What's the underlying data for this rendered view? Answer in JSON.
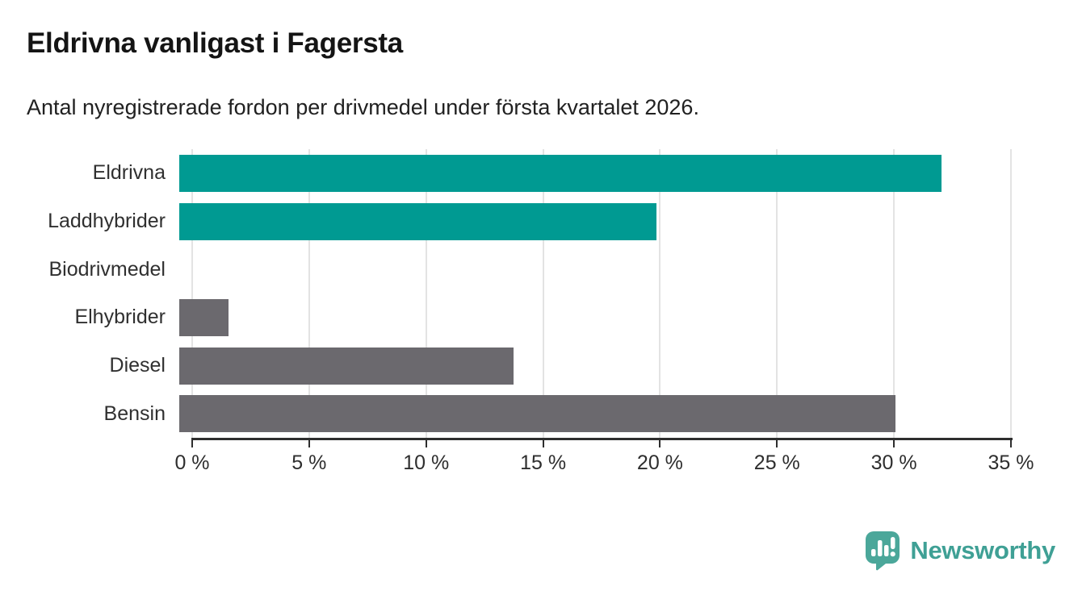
{
  "header": {
    "title": "Eldrivna vanligast i Fagersta",
    "subtitle": "Antal nyregistrerade fordon per drivmedel under första kvartalet 2026."
  },
  "chart_data": {
    "type": "bar",
    "orientation": "horizontal",
    "title": "Eldrivna vanligast i Fagersta",
    "subtitle": "Antal nyregistrerade fordon per drivmedel under första kvartalet 2026.",
    "categories": [
      "Eldrivna",
      "Laddhybrider",
      "Biodrivmedel",
      "Elhybrider",
      "Diesel",
      "Bensin"
    ],
    "values": [
      32.6,
      20.4,
      0,
      2.1,
      14.3,
      30.6
    ],
    "unit": "%",
    "xlim": [
      0,
      35
    ],
    "x_ticks": [
      0,
      5,
      10,
      15,
      20,
      25,
      30,
      35
    ],
    "x_tick_labels": [
      "0 %",
      "5 %",
      "10 %",
      "15 %",
      "20 %",
      "25 %",
      "30 %",
      "35 %"
    ],
    "bar_colors": [
      "#009A92",
      "#009A92",
      "#009A92",
      "#6B696E",
      "#6B696E",
      "#6B696E"
    ],
    "grid": true,
    "legend": false,
    "colors": {
      "highlight": "#009A92",
      "default": "#6B696E",
      "gridline": "#E3E3E3",
      "axis": "#2E2E2E",
      "label": "#303030"
    }
  },
  "footer": {
    "brand": "Newsworthy",
    "brand_color": "#3FA095",
    "logo_icon": "newsworthy-pin-barchart-icon",
    "logo_color": "#4BA79A"
  }
}
